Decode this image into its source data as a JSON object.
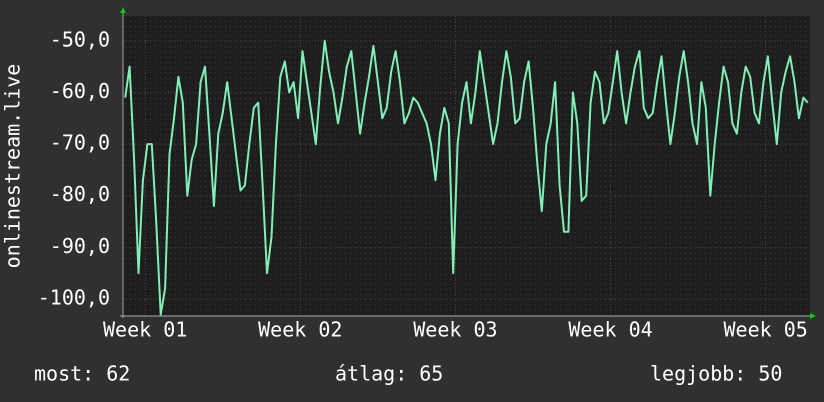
{
  "chart_data": {
    "type": "line",
    "y_label": "onlinestream.live",
    "xlim": [
      0,
      31
    ],
    "xticks": [
      {
        "value": 1,
        "label": "Week 01"
      },
      {
        "value": 8,
        "label": "Week 02"
      },
      {
        "value": 15,
        "label": "Week 03"
      },
      {
        "value": 22,
        "label": "Week 04"
      },
      {
        "value": 29,
        "label": "Week 05"
      }
    ],
    "ylim": [
      -103.3,
      -45.2
    ],
    "yticks": [
      {
        "value": -50,
        "label": "-50,0"
      },
      {
        "value": -60,
        "label": "-60,0"
      },
      {
        "value": -70,
        "label": "-70,0"
      },
      {
        "value": -80,
        "label": "-80,0"
      },
      {
        "value": -90,
        "label": "-90,0"
      },
      {
        "value": -100,
        "label": "-100,0"
      }
    ],
    "grid": true,
    "x": [
      0.1,
      0.3,
      0.5,
      0.7,
      0.9,
      1.1,
      1.3,
      1.5,
      1.7,
      1.9,
      2.1,
      2.3,
      2.5,
      2.7,
      2.9,
      3.1,
      3.3,
      3.5,
      3.7,
      3.9,
      4.1,
      4.3,
      4.5,
      4.7,
      4.9,
      5.1,
      5.3,
      5.5,
      5.7,
      5.9,
      6.1,
      6.3,
      6.5,
      6.7,
      6.9,
      7.1,
      7.3,
      7.5,
      7.7,
      7.9,
      8.1,
      8.3,
      8.5,
      8.7,
      8.9,
      9.1,
      9.3,
      9.5,
      9.7,
      9.9,
      10.1,
      10.3,
      10.5,
      10.7,
      10.9,
      11.1,
      11.3,
      11.5,
      11.7,
      11.9,
      12.1,
      12.3,
      12.5,
      12.7,
      12.9,
      13.1,
      13.3,
      13.5,
      13.7,
      13.9,
      14.1,
      14.3,
      14.5,
      14.7,
      14.9,
      15.1,
      15.3,
      15.5,
      15.7,
      15.9,
      16.1,
      16.3,
      16.5,
      16.7,
      16.9,
      17.1,
      17.3,
      17.5,
      17.7,
      17.9,
      18.1,
      18.3,
      18.5,
      18.7,
      18.9,
      19.1,
      19.3,
      19.5,
      19.7,
      19.9,
      20.1,
      20.3,
      20.5,
      20.7,
      20.9,
      21.1,
      21.3,
      21.5,
      21.7,
      21.9,
      22.1,
      22.3,
      22.5,
      22.7,
      22.9,
      23.1,
      23.3,
      23.5,
      23.7,
      23.9,
      24.1,
      24.3,
      24.5,
      24.7,
      24.9,
      25.1,
      25.3,
      25.5,
      25.7,
      25.9,
      26.1,
      26.3,
      26.5,
      26.7,
      26.9,
      27.1,
      27.3,
      27.5,
      27.7,
      27.9,
      28.1,
      28.3,
      28.5,
      28.7,
      28.9,
      29.1,
      29.3,
      29.5,
      29.7,
      29.9,
      30.1,
      30.3,
      30.5,
      30.7,
      30.9
    ],
    "series": [
      {
        "color": "#80f0b4",
        "values": [
          -61,
          -55,
          -73,
          -95,
          -77,
          -70,
          -70,
          -85,
          -103,
          -98,
          -72,
          -65,
          -57,
          -62,
          -80,
          -73,
          -70,
          -58,
          -55,
          -68,
          -82,
          -68,
          -64,
          -58,
          -65,
          -72,
          -79,
          -78,
          -70,
          -63,
          -62,
          -78,
          -95,
          -88,
          -70,
          -57,
          -54,
          -60,
          -58,
          -65,
          -52,
          -58,
          -64,
          -70,
          -59,
          -50,
          -56,
          -60,
          -66,
          -61,
          -55,
          -52,
          -60,
          -68,
          -62,
          -57,
          -51,
          -58,
          -65,
          -63,
          -56,
          -52,
          -58,
          -66,
          -64,
          -61,
          -62,
          -64,
          -66,
          -70,
          -77,
          -68,
          -63,
          -66,
          -95,
          -70,
          -62,
          -58,
          -66,
          -60,
          -52,
          -58,
          -64,
          -70,
          -66,
          -58,
          -52,
          -57,
          -66,
          -65,
          -58,
          -54,
          -63,
          -74,
          -83,
          -70,
          -66,
          -58,
          -78,
          -87,
          -87,
          -60,
          -66,
          -81,
          -80,
          -62,
          -56,
          -58,
          -66,
          -64,
          -58,
          -52,
          -60,
          -66,
          -60,
          -55,
          -52,
          -63,
          -65,
          -64,
          -58,
          -53,
          -62,
          -70,
          -64,
          -57,
          -52,
          -58,
          -66,
          -70,
          -58,
          -63,
          -80,
          -70,
          -62,
          -55,
          -58,
          -66,
          -68,
          -60,
          -55,
          -57,
          -64,
          -66,
          -58,
          -53,
          -62,
          -70,
          -60,
          -56,
          -53,
          -58,
          -65,
          -61,
          -62
        ]
      }
    ],
    "stats": [
      {
        "label": "most:",
        "value": 62
      },
      {
        "label": "átlag:",
        "value": 65
      },
      {
        "label": "legjobb:",
        "value": 50
      }
    ]
  }
}
